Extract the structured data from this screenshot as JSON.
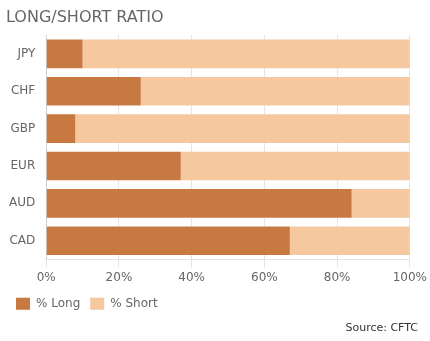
{
  "chart_data": {
    "type": "bar",
    "orientation": "horizontal",
    "stacked": true,
    "title": "LONG/SHORT RATIO",
    "categories": [
      "JPY",
      "CHF",
      "GBP",
      "EUR",
      "AUD",
      "CAD"
    ],
    "series": [
      {
        "name": "% Long",
        "color": "#C87941",
        "values": [
          10,
          26,
          8,
          37,
          84,
          67
        ]
      },
      {
        "name": "% Short",
        "color": "#F5C8A0",
        "values": [
          90,
          74,
          92,
          63,
          16,
          33
        ]
      }
    ],
    "xlim": [
      0,
      100
    ],
    "xticks": [
      {
        "value": 0,
        "label": "0%"
      },
      {
        "value": 20,
        "label": "20%"
      },
      {
        "value": 40,
        "label": "40%"
      },
      {
        "value": 60,
        "label": "60%"
      },
      {
        "value": 80,
        "label": "80%"
      },
      {
        "value": 100,
        "label": "100%"
      }
    ],
    "grid": true,
    "legend": "lower left",
    "annotations": [
      "Source: CFTC"
    ]
  }
}
